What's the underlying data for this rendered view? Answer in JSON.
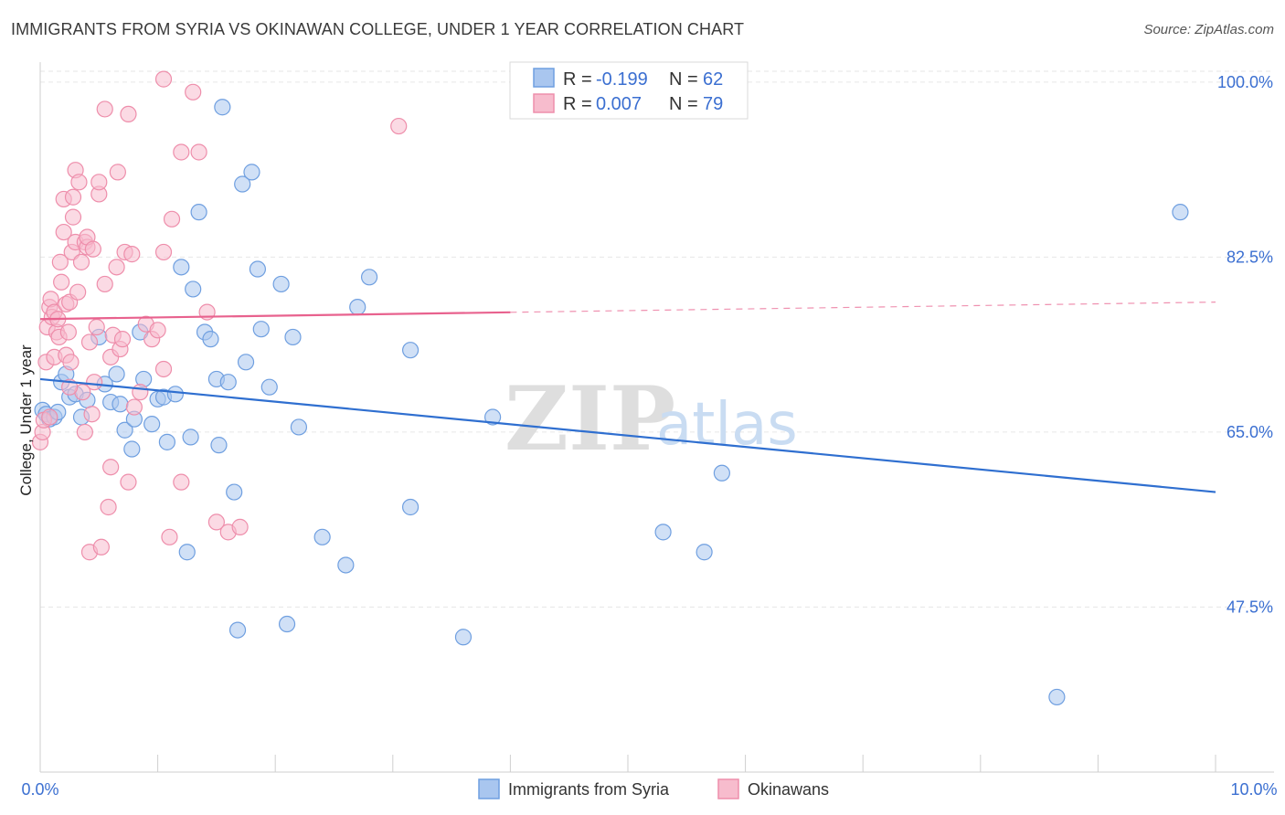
{
  "chart_data": {
    "type": "scatter",
    "title": "IMMIGRANTS FROM SYRIA VS OKINAWAN COLLEGE, UNDER 1 YEAR CORRELATION CHART",
    "source": "Source: ZipAtlas.com",
    "xlabel": "",
    "ylabel": "College, Under 1 year",
    "xlim": [
      0.0,
      10.0
    ],
    "ylim": [
      31.0,
      102.0
    ],
    "x_tick_labels": [
      "0.0%",
      "10.0%"
    ],
    "y_ticks": [
      47.5,
      65.0,
      82.5,
      100.0
    ],
    "y_tick_labels": [
      "47.5%",
      "65.0%",
      "82.5%",
      "100.0%"
    ],
    "watermark": {
      "zip": "ZIP",
      "atlas": "atlas"
    },
    "legend_stats": [
      {
        "r_label": "R =",
        "r_value": "-0.199",
        "n_label": "N =",
        "n_value": "62"
      },
      {
        "r_label": "R =",
        "r_value": "0.007",
        "n_label": "N =",
        "n_value": "79"
      }
    ],
    "series": [
      {
        "name": "Immigrants from Syria",
        "color": "#a9c6ef",
        "stroke": "#6f9fe0",
        "trend_color": "#2f6fd0",
        "trend": {
          "x0": 0.0,
          "y0": 70.3,
          "x1": 10.0,
          "y1": 59.0,
          "solid_to": 10.0
        },
        "points": [
          [
            0.02,
            67.2
          ],
          [
            0.05,
            66.8
          ],
          [
            0.08,
            66.3
          ],
          [
            0.12,
            66.5
          ],
          [
            0.18,
            70.0
          ],
          [
            0.22,
            70.8
          ],
          [
            0.25,
            68.5
          ],
          [
            0.3,
            68.8
          ],
          [
            0.35,
            66.5
          ],
          [
            0.4,
            68.2
          ],
          [
            0.5,
            74.5
          ],
          [
            0.55,
            69.8
          ],
          [
            0.6,
            68.0
          ],
          [
            0.65,
            70.8
          ],
          [
            0.68,
            67.8
          ],
          [
            0.72,
            65.2
          ],
          [
            0.78,
            63.3
          ],
          [
            0.8,
            66.3
          ],
          [
            0.85,
            75.0
          ],
          [
            0.88,
            70.3
          ],
          [
            0.95,
            65.8
          ],
          [
            1.0,
            68.3
          ],
          [
            1.05,
            68.5
          ],
          [
            1.08,
            64.0
          ],
          [
            1.15,
            68.8
          ],
          [
            1.2,
            81.5
          ],
          [
            1.25,
            53.0
          ],
          [
            1.28,
            64.5
          ],
          [
            1.3,
            79.3
          ],
          [
            1.35,
            87.0
          ],
          [
            1.4,
            75.0
          ],
          [
            1.45,
            74.3
          ],
          [
            1.5,
            70.3
          ],
          [
            1.52,
            63.7
          ],
          [
            1.55,
            97.5
          ],
          [
            1.6,
            70.0
          ],
          [
            1.65,
            59.0
          ],
          [
            1.68,
            45.2
          ],
          [
            1.72,
            89.8
          ],
          [
            1.75,
            72.0
          ],
          [
            1.8,
            91.0
          ],
          [
            1.85,
            81.3
          ],
          [
            1.88,
            75.3
          ],
          [
            1.95,
            69.5
          ],
          [
            2.05,
            79.8
          ],
          [
            2.1,
            45.8
          ],
          [
            2.15,
            74.5
          ],
          [
            2.2,
            65.5
          ],
          [
            2.4,
            54.5
          ],
          [
            2.6,
            51.7
          ],
          [
            2.7,
            77.5
          ],
          [
            2.8,
            80.5
          ],
          [
            3.15,
            73.2
          ],
          [
            3.15,
            57.5
          ],
          [
            3.6,
            44.5
          ],
          [
            3.85,
            66.5
          ],
          [
            5.3,
            55.0
          ],
          [
            5.65,
            53.0
          ],
          [
            5.8,
            60.9
          ],
          [
            8.65,
            38.5
          ],
          [
            9.7,
            87.0
          ],
          [
            0.15,
            67.0
          ]
        ]
      },
      {
        "name": "Okinawans",
        "color": "#f7bccd",
        "stroke": "#ee8eab",
        "trend_color": "#e8628e",
        "trend": {
          "x0": 0.0,
          "y0": 76.3,
          "x1": 10.0,
          "y1": 78.0,
          "solid_to": 4.0
        },
        "points": [
          [
            0.0,
            64.0
          ],
          [
            0.02,
            65.0
          ],
          [
            0.03,
            66.2
          ],
          [
            0.05,
            72.0
          ],
          [
            0.06,
            75.5
          ],
          [
            0.08,
            77.5
          ],
          [
            0.09,
            78.3
          ],
          [
            0.1,
            76.5
          ],
          [
            0.12,
            72.5
          ],
          [
            0.12,
            77.0
          ],
          [
            0.14,
            75.0
          ],
          [
            0.15,
            76.3
          ],
          [
            0.16,
            74.5
          ],
          [
            0.17,
            82.0
          ],
          [
            0.18,
            80.0
          ],
          [
            0.2,
            85.0
          ],
          [
            0.2,
            88.3
          ],
          [
            0.22,
            77.8
          ],
          [
            0.22,
            72.7
          ],
          [
            0.24,
            75.0
          ],
          [
            0.25,
            78.0
          ],
          [
            0.26,
            72.0
          ],
          [
            0.27,
            83.0
          ],
          [
            0.28,
            86.5
          ],
          [
            0.28,
            88.5
          ],
          [
            0.3,
            84.0
          ],
          [
            0.3,
            91.2
          ],
          [
            0.32,
            79.0
          ],
          [
            0.33,
            90.0
          ],
          [
            0.35,
            82.0
          ],
          [
            0.36,
            69.0
          ],
          [
            0.38,
            65.0
          ],
          [
            0.38,
            84.0
          ],
          [
            0.4,
            83.5
          ],
          [
            0.4,
            84.5
          ],
          [
            0.42,
            74.0
          ],
          [
            0.42,
            53.0
          ],
          [
            0.44,
            66.8
          ],
          [
            0.45,
            83.3
          ],
          [
            0.46,
            70.0
          ],
          [
            0.48,
            75.5
          ],
          [
            0.5,
            88.8
          ],
          [
            0.5,
            90.0
          ],
          [
            0.52,
            53.5
          ],
          [
            0.55,
            97.3
          ],
          [
            0.55,
            79.8
          ],
          [
            0.58,
            57.5
          ],
          [
            0.6,
            61.5
          ],
          [
            0.6,
            72.5
          ],
          [
            0.62,
            74.7
          ],
          [
            0.65,
            81.5
          ],
          [
            0.66,
            91.0
          ],
          [
            0.68,
            73.3
          ],
          [
            0.7,
            74.3
          ],
          [
            0.72,
            83.0
          ],
          [
            0.75,
            96.8
          ],
          [
            0.75,
            60.0
          ],
          [
            0.78,
            82.8
          ],
          [
            0.8,
            67.5
          ],
          [
            0.85,
            69.0
          ],
          [
            0.9,
            75.8
          ],
          [
            0.95,
            74.3
          ],
          [
            1.0,
            75.2
          ],
          [
            1.05,
            71.3
          ],
          [
            1.05,
            83.0
          ],
          [
            1.05,
            100.3
          ],
          [
            1.1,
            54.5
          ],
          [
            1.12,
            86.3
          ],
          [
            1.2,
            60.0
          ],
          [
            1.2,
            93.0
          ],
          [
            1.3,
            99.0
          ],
          [
            1.35,
            93.0
          ],
          [
            1.42,
            77.0
          ],
          [
            1.5,
            56.0
          ],
          [
            1.6,
            55.0
          ],
          [
            1.7,
            55.5
          ],
          [
            3.05,
            95.6
          ],
          [
            0.08,
            66.5
          ],
          [
            0.25,
            69.5
          ]
        ]
      }
    ]
  }
}
